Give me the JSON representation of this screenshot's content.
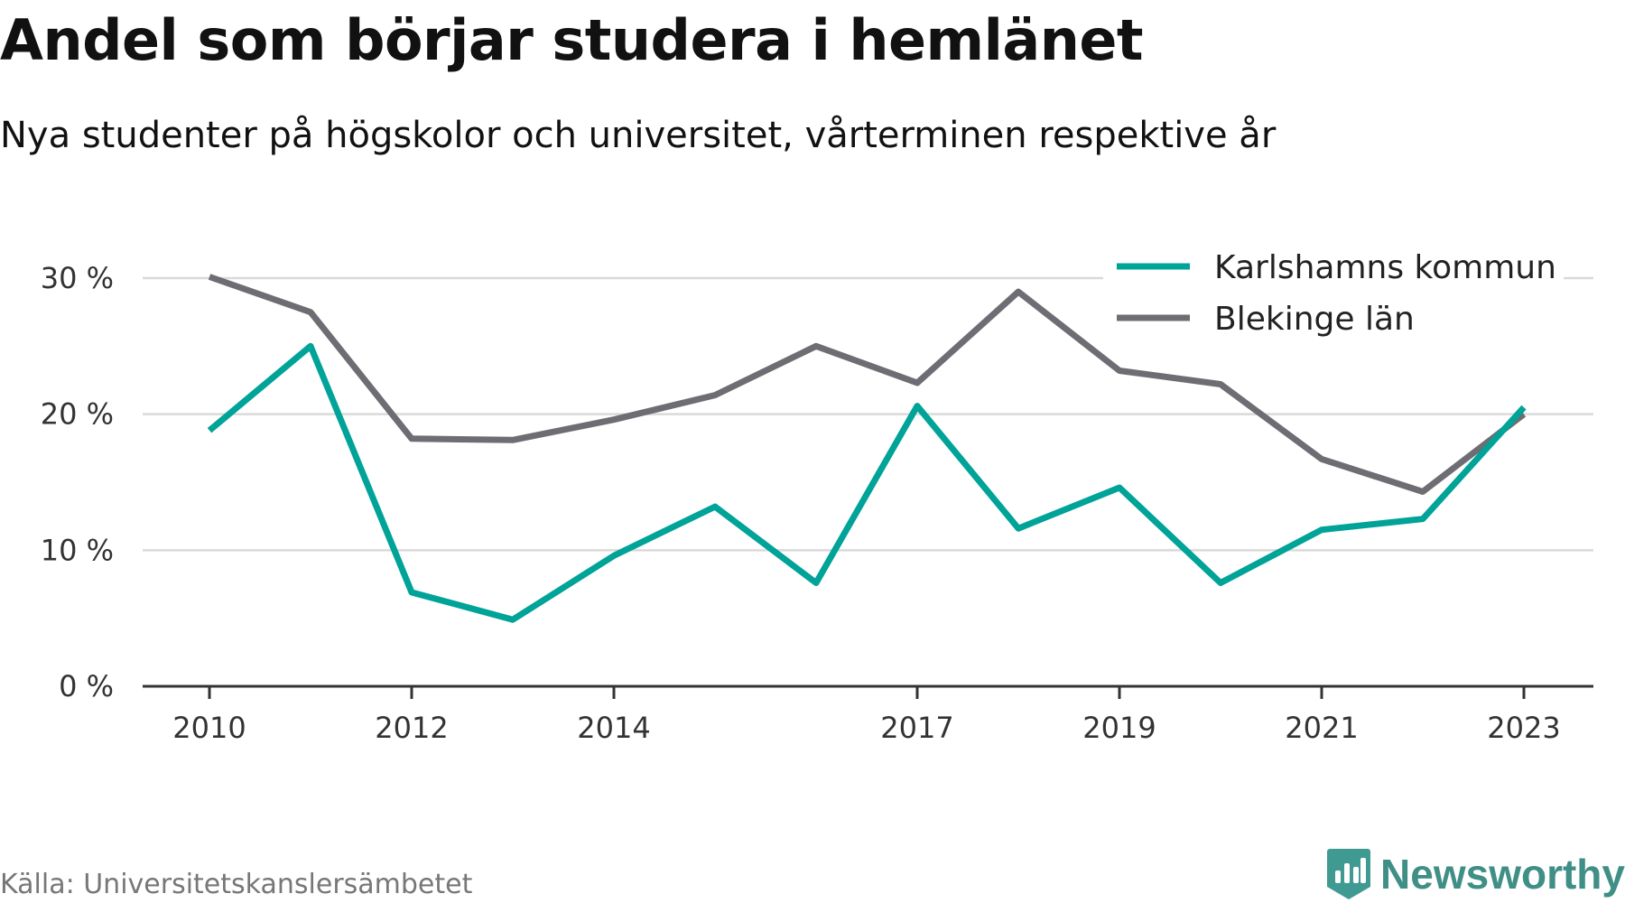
{
  "title": "Andel som börjar studera i hemlänet",
  "subtitle": "Nya studenter på högskolor och universitet, vårterminen respektive år",
  "source": "Källa: Universitetskanslersämbetet",
  "brand": {
    "name": "Newsworthy",
    "icon": "newsworthy-logo-icon",
    "color": "#3f9b91"
  },
  "colors": {
    "karlshamn": "#00a398",
    "blekinge": "#6e6d73",
    "grid": "#d9d9d9",
    "axis": "#333333"
  },
  "chart_data": {
    "type": "line",
    "x": [
      2010,
      2011,
      2012,
      2013,
      2014,
      2015,
      2016,
      2017,
      2018,
      2019,
      2020,
      2021,
      2022,
      2023
    ],
    "x_tick_labels": [
      "2010",
      "2012",
      "2014",
      "2017",
      "2019",
      "2021",
      "2023"
    ],
    "x_tick_values": [
      2010,
      2012,
      2014,
      2017,
      2019,
      2021,
      2023
    ],
    "y_ticks": [
      0,
      10,
      20,
      30
    ],
    "y_tick_labels": [
      "0 %",
      "10 %",
      "20 %",
      "30 %"
    ],
    "ylim": [
      0,
      30
    ],
    "grid": true,
    "legend_position": "top-right",
    "series": [
      {
        "name": "Karlshamns kommun",
        "color": "#00a398",
        "values": [
          18.8,
          25.0,
          6.9,
          4.9,
          9.6,
          13.2,
          7.6,
          20.6,
          11.6,
          14.6,
          7.6,
          11.5,
          12.3,
          20.5
        ]
      },
      {
        "name": "Blekinge län",
        "color": "#6e6d73",
        "values": [
          30.1,
          27.5,
          18.2,
          18.1,
          19.6,
          21.4,
          25.0,
          22.3,
          29.0,
          23.2,
          22.2,
          16.7,
          14.3,
          20.0
        ]
      }
    ]
  }
}
